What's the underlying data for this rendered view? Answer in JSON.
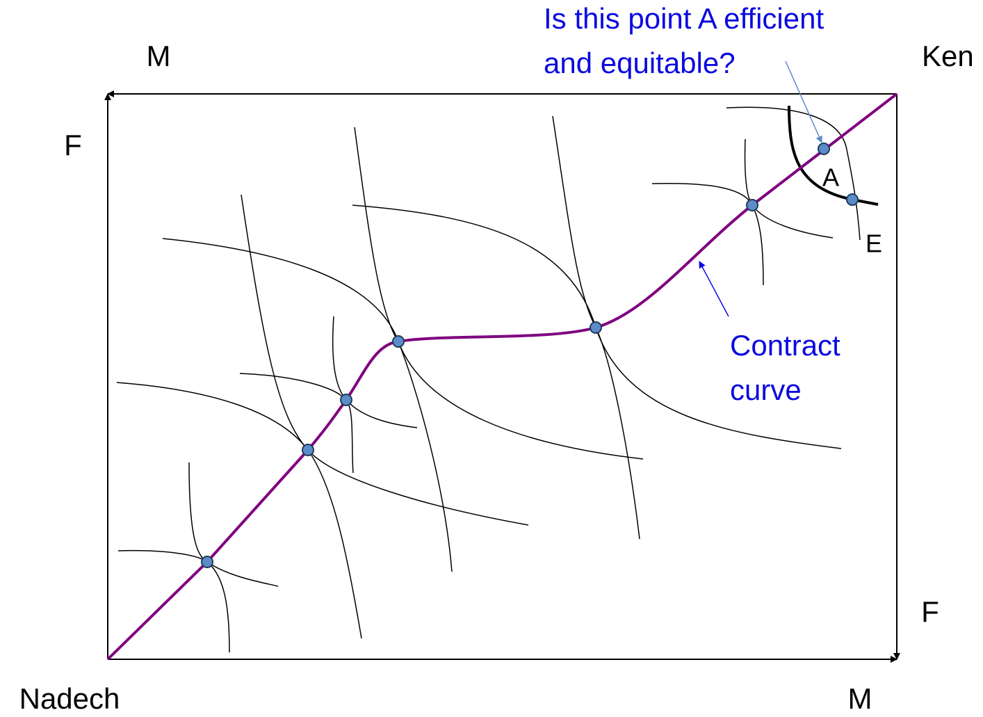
{
  "labels": {
    "top_good": "M",
    "ken": "Ken",
    "left_good": "F",
    "question_line1": "Is this point A efficient",
    "question_line2": "and  equitable?",
    "point_a": "A",
    "point_e": "E",
    "contract_line1": "Contract",
    "contract_line2": "curve",
    "right_good": "F",
    "nadech": "Nadech",
    "bottom_good": "M"
  }
}
